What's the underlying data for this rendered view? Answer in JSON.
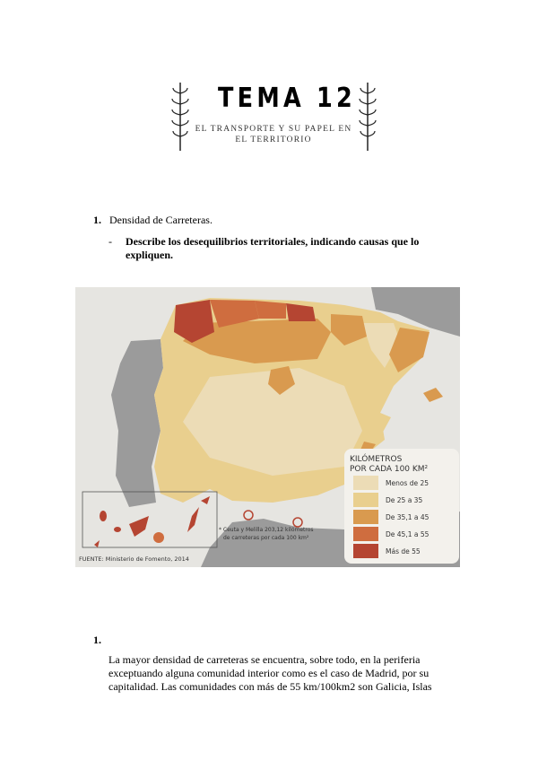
{
  "header": {
    "title": "TEMA 12",
    "subtitle": "EL TRANSPORTE Y SU PAPEL EN EL TERRITORIO"
  },
  "question": {
    "number": "1.",
    "title": "Densidad de Carreteras.",
    "dash": "-",
    "prompt": "Describe los desequilibrios territoriales, indicando causas que lo expliquen."
  },
  "map": {
    "legend_title_1": "KILÓMETROS",
    "legend_title_2": "POR CADA 100 KM²",
    "legend": [
      {
        "label": "Menos de 25",
        "color": "#ecdcb6"
      },
      {
        "label": "De 25 a 35",
        "color": "#e9cf8e"
      },
      {
        "label": "De 35,1 a 45",
        "color": "#d99a4f"
      },
      {
        "label": "De 45,1 a 55",
        "color": "#cf6d3f"
      },
      {
        "label": "Más de 55",
        "color": "#b54532"
      }
    ],
    "note_1": "* Ceuta y Melilla 203,12 kilómetros",
    "note_2": "de carreteras por cada 100 km²",
    "source": "FUENTE: Ministerio de Fomento, 2014"
  },
  "answer": {
    "number": "1.",
    "text": "La mayor densidad de carreteras se encuentra, sobre todo, en la periferia exceptuando alguna comunidad interior como es el caso de Madrid, por su capitalidad. Las comunidades con más de 55 km/100km2 son Galicia, Islas"
  }
}
